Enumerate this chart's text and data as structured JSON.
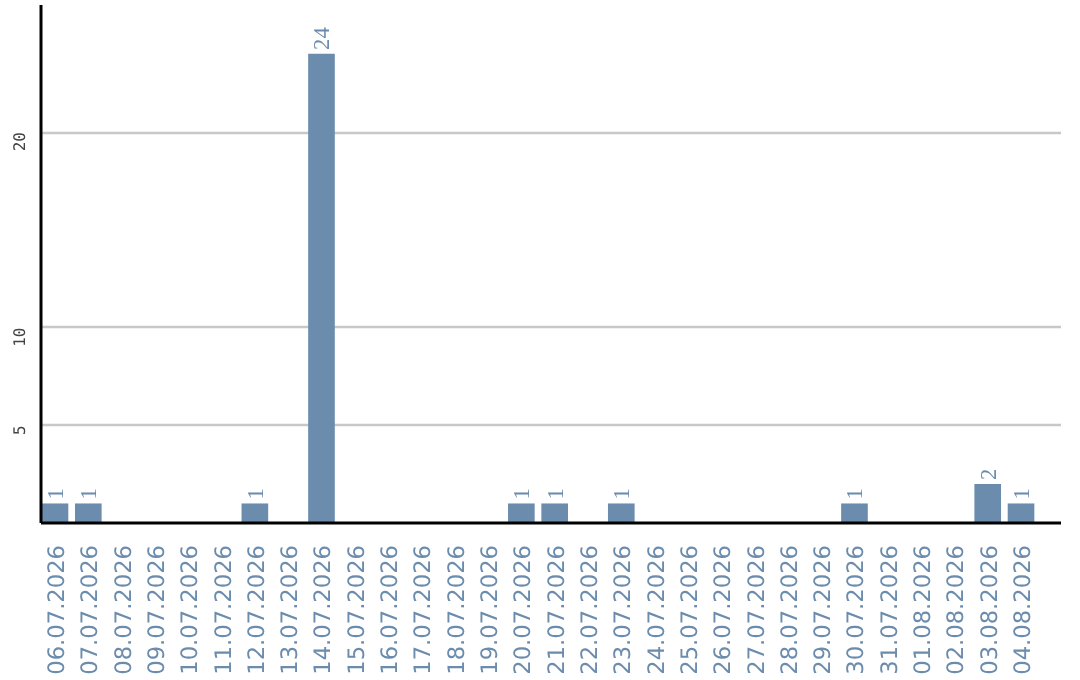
{
  "chart_data": {
    "type": "bar",
    "categories": [
      "06.07.2026",
      "07.07.2026",
      "08.07.2026",
      "09.07.2026",
      "10.07.2026",
      "11.07.2026",
      "12.07.2026",
      "13.07.2026",
      "14.07.2026",
      "15.07.2026",
      "16.07.2026",
      "17.07.2026",
      "18.07.2026",
      "19.07.2026",
      "20.07.2026",
      "21.07.2026",
      "22.07.2026",
      "23.07.2026",
      "24.07.2026",
      "25.07.2026",
      "26.07.2026",
      "27.07.2026",
      "28.07.2026",
      "29.07.2026",
      "30.07.2026",
      "31.07.2026",
      "01.08.2026",
      "02.08.2026",
      "03.08.2026",
      "04.08.2026"
    ],
    "values": [
      1,
      1,
      0,
      0,
      0,
      0,
      1,
      0,
      24,
      0,
      0,
      0,
      0,
      0,
      1,
      1,
      0,
      1,
      0,
      0,
      0,
      0,
      0,
      0,
      1,
      0,
      0,
      0,
      2,
      1
    ],
    "value_labels": [
      "1",
      "1",
      null,
      null,
      null,
      null,
      "1",
      null,
      "24",
      null,
      null,
      null,
      null,
      null,
      "1",
      "1",
      null,
      "1",
      null,
      null,
      null,
      null,
      null,
      null,
      "1",
      null,
      null,
      null,
      "2",
      "1"
    ],
    "color": "#6b8cad",
    "ylim": [
      0,
      26.5
    ],
    "yticks": [
      5,
      10,
      20
    ],
    "grid": "y"
  }
}
